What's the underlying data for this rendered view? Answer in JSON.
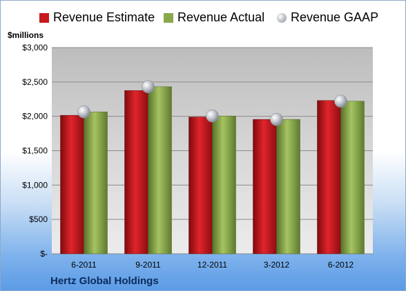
{
  "header": {
    "units_label": "$millions"
  },
  "footer": {
    "company": "Hertz Global Holdings"
  },
  "legend": [
    {
      "label": "Revenue Estimate",
      "marker": "square",
      "color": "#c8191f"
    },
    {
      "label": "Revenue Actual",
      "marker": "square",
      "color": "#8aa84a"
    },
    {
      "label": "Revenue GAAP",
      "marker": "circle",
      "color": "#a9aeb6"
    }
  ],
  "chart_data": {
    "type": "bar",
    "categories": [
      "6-2011",
      "9-2011",
      "12-2011",
      "3-2012",
      "6-2012"
    ],
    "series": [
      {
        "name": "Revenue Estimate",
        "type": "bar",
        "color": "#c8191f",
        "values": [
          2015,
          2375,
          1990,
          1955,
          2230
        ]
      },
      {
        "name": "Revenue Actual",
        "type": "bar",
        "color": "#8aa84a",
        "values": [
          2065,
          2430,
          2005,
          1955,
          2220
        ]
      },
      {
        "name": "Revenue GAAP",
        "type": "marker",
        "color": "#a9aeb6",
        "values": [
          2065,
          2430,
          2005,
          1955,
          2220
        ]
      }
    ],
    "ylabel": "$millions",
    "ylim": [
      0,
      3000
    ],
    "yticks": [
      0,
      500,
      1000,
      1500,
      2000,
      2500,
      3000
    ],
    "ytick_labels": [
      "$-",
      "$500",
      "$1,000",
      "$1,500",
      "$2,000",
      "$2,500",
      "$3,000"
    ],
    "grid": true,
    "legend_position": "top"
  }
}
